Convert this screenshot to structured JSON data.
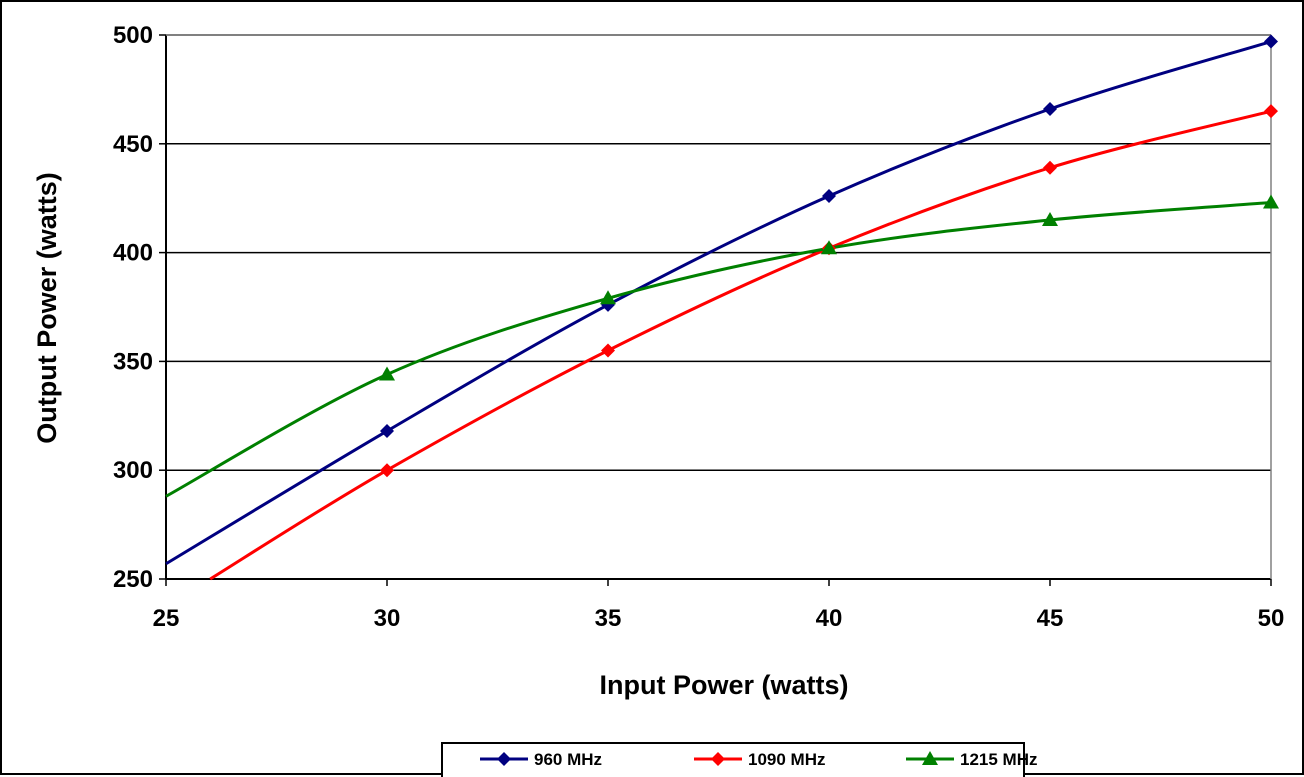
{
  "chart_data": {
    "type": "line",
    "title": "",
    "xlabel": "Input Power (watts)",
    "ylabel": "Output Power (watts)",
    "xlim": [
      25,
      50
    ],
    "ylim": [
      250,
      500
    ],
    "xticks": [
      25,
      30,
      35,
      40,
      45,
      50
    ],
    "yticks": [
      250,
      300,
      350,
      400,
      450,
      500
    ],
    "grid": "horizontal",
    "legend_position": "bottom",
    "smoothed": true,
    "series": [
      {
        "name": "960 MHz",
        "color": "#000080",
        "marker": "diamond",
        "x": [
          30,
          35,
          40,
          45,
          50
        ],
        "y": [
          318,
          376,
          426,
          466,
          497
        ],
        "curve_start": [
          25,
          257
        ]
      },
      {
        "name": "1090 MHz",
        "color": "#ff0000",
        "marker": "diamond",
        "x": [
          30,
          35,
          40,
          45,
          50
        ],
        "y": [
          300,
          355,
          402,
          439,
          465
        ],
        "curve_start": [
          26,
          250
        ]
      },
      {
        "name": "1215 MHz",
        "color": "#008000",
        "marker": "triangle",
        "x": [
          30,
          35,
          40,
          45,
          50
        ],
        "y": [
          344,
          379,
          402,
          415,
          423
        ],
        "curve_start": [
          25,
          288
        ]
      }
    ]
  }
}
